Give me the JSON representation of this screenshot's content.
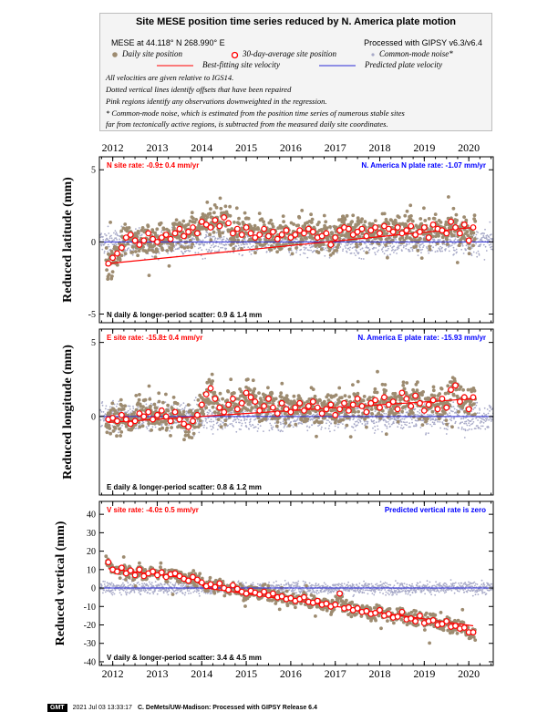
{
  "header": {
    "title": "Site MESE position time series reduced by N. America plate motion",
    "site_location": "MESE at 44.118° N 268.990° E",
    "processing": "Processed with GIPSY v6.3/v6.4",
    "legend_daily": "Daily site position",
    "legend_avg": "30-day-average site position",
    "legend_cmn": "Common-mode noise*",
    "legend_fit": "Best-fitting site velocity",
    "legend_pred": "Predicted plate velocity",
    "note1": "All velocities are given relative to IGS14.",
    "note2": "Dotted vertical lines identify offsets that have been repaired",
    "note3": "Pink regions identify any observations downweighted in the regression.",
    "note4": "* Common-mode noise, which is estimated from the position time series of numerous stable sites",
    "note5": "far from tectonically active regions, is subtracted from the measured daily site coordinates."
  },
  "footer": {
    "logo": "GMT",
    "timestamp": "2021 Jul 03 13:33:17",
    "credit": "C. DeMets/UW-Madison: Processed with GIPSY Release 6.4"
  },
  "colors": {
    "daily": "#9d8b70",
    "noise": "#a8aac8",
    "fit": "#ff0000",
    "predicted": "#2a2ad6",
    "rate_text_red": "#ff0000",
    "rate_text_blue": "#0000ff"
  },
  "chart_data": [
    {
      "type": "scatter",
      "component": "N",
      "ylabel": "Reduced latitude (mm)",
      "xlim": [
        2011.7,
        2020.55
      ],
      "ylim": [
        -5.6,
        5.9
      ],
      "yticks": [
        -5,
        0,
        5
      ],
      "xticks": [
        2012,
        2013,
        2014,
        2015,
        2016,
        2017,
        2018,
        2019,
        2020
      ],
      "site_rate": "N site rate:  -0.9± 0.4 mm/yr",
      "plate_rate": "N. America N plate rate: -1.07 mm/yr",
      "scatter_text": "N daily & longer-period scatter:   0.9 &   1.4 mm",
      "fit_line": {
        "x": [
          2011.9,
          2020.1
        ],
        "y": [
          -1.5,
          1.0
        ]
      },
      "predicted_line": {
        "x": [
          2011.7,
          2020.55
        ],
        "y": [
          0,
          0
        ]
      },
      "avg": {
        "x": [
          2011.9,
          2012.0,
          2012.1,
          2012.2,
          2012.3,
          2012.4,
          2012.5,
          2012.6,
          2012.7,
          2012.8,
          2012.9,
          2013.0,
          2013.1,
          2013.2,
          2013.3,
          2013.4,
          2013.5,
          2013.6,
          2013.7,
          2013.8,
          2013.9,
          2014.0,
          2014.1,
          2014.2,
          2014.3,
          2014.4,
          2014.5,
          2014.6,
          2014.7,
          2014.8,
          2014.9,
          2015.0,
          2015.1,
          2015.2,
          2015.3,
          2015.4,
          2015.5,
          2015.6,
          2015.7,
          2015.8,
          2015.9,
          2016.0,
          2016.1,
          2016.2,
          2016.3,
          2016.4,
          2016.5,
          2016.6,
          2016.7,
          2016.8,
          2016.9,
          2017.0,
          2017.1,
          2017.2,
          2017.3,
          2017.4,
          2017.5,
          2017.6,
          2017.7,
          2017.8,
          2017.9,
          2018.0,
          2018.1,
          2018.2,
          2018.3,
          2018.4,
          2018.5,
          2018.6,
          2018.7,
          2018.8,
          2018.9,
          2019.0,
          2019.1,
          2019.2,
          2019.3,
          2019.4,
          2019.5,
          2019.6,
          2019.7,
          2019.8,
          2019.9,
          2020.0,
          2020.1
        ],
        "y": [
          -1.5,
          -1.1,
          -0.8,
          -0.4,
          0.3,
          0.5,
          0.1,
          -0.2,
          0.1,
          0.6,
          0.2,
          0.0,
          0.3,
          0.5,
          0.2,
          0.6,
          0.9,
          0.4,
          0.7,
          1.0,
          0.6,
          1.4,
          1.2,
          1.0,
          1.5,
          1.1,
          1.7,
          1.3,
          0.6,
          0.9,
          0.5,
          1.0,
          0.6,
          0.3,
          0.5,
          0.9,
          0.4,
          0.7,
          0.2,
          0.5,
          0.8,
          0.3,
          0.5,
          0.8,
          0.6,
          0.9,
          0.7,
          0.3,
          0.4,
          0.6,
          -0.2,
          0.3,
          0.8,
          1.0,
          0.9,
          0.5,
          0.7,
          0.9,
          0.4,
          0.8,
          1.0,
          0.6,
          1.1,
          0.9,
          0.7,
          1.0,
          0.6,
          0.8,
          1.1,
          0.5,
          0.7,
          1.0,
          0.3,
          1.2,
          0.9,
          0.8,
          0.6,
          1.4,
          1.0,
          0.6,
          1.2,
          0.1,
          1.0
        ]
      }
    },
    {
      "type": "scatter",
      "component": "E",
      "ylabel": "Reduced longitude (mm)",
      "xlim": [
        2011.7,
        2020.55
      ],
      "ylim": [
        -5.3,
        5.9
      ],
      "yticks": [
        0,
        5
      ],
      "xticks": [
        2012,
        2013,
        2014,
        2015,
        2016,
        2017,
        2018,
        2019,
        2020
      ],
      "site_rate": "E site rate:  -15.8± 0.4 mm/yr",
      "plate_rate": "N. America E plate rate: -15.93 mm/yr",
      "scatter_text": "E daily & longer-period scatter:   0.8 &   1.2 mm",
      "fit_line": {
        "x": [
          2011.9,
          2020.1
        ],
        "y": [
          -0.4,
          1.2
        ]
      },
      "predicted_line": {
        "x": [
          2011.7,
          2020.55
        ],
        "y": [
          0,
          0
        ]
      },
      "avg": {
        "x": [
          2011.9,
          2012.0,
          2012.1,
          2012.2,
          2012.3,
          2012.4,
          2012.5,
          2012.6,
          2012.7,
          2012.8,
          2012.9,
          2013.0,
          2013.1,
          2013.2,
          2013.3,
          2013.4,
          2013.5,
          2013.6,
          2013.7,
          2013.8,
          2013.9,
          2014.0,
          2014.1,
          2014.2,
          2014.3,
          2014.4,
          2014.5,
          2014.6,
          2014.7,
          2014.8,
          2014.9,
          2015.0,
          2015.1,
          2015.2,
          2015.3,
          2015.4,
          2015.5,
          2015.6,
          2015.7,
          2015.8,
          2015.9,
          2016.0,
          2016.1,
          2016.2,
          2016.3,
          2016.4,
          2016.5,
          2016.6,
          2016.7,
          2016.8,
          2016.9,
          2017.0,
          2017.1,
          2017.2,
          2017.3,
          2017.4,
          2017.5,
          2017.6,
          2017.7,
          2017.8,
          2017.9,
          2018.0,
          2018.1,
          2018.2,
          2018.3,
          2018.4,
          2018.5,
          2018.6,
          2018.7,
          2018.8,
          2018.9,
          2019.0,
          2019.1,
          2019.2,
          2019.3,
          2019.4,
          2019.5,
          2019.6,
          2019.7,
          2019.8,
          2019.9,
          2020.0,
          2020.1
        ],
        "y": [
          -0.2,
          -0.1,
          -0.3,
          0.1,
          -0.2,
          -0.5,
          -0.3,
          0.2,
          0.0,
          0.3,
          -0.2,
          0.1,
          0.4,
          0.0,
          -0.3,
          0.3,
          -0.2,
          -0.5,
          -0.7,
          -0.3,
          0.1,
          0.8,
          1.5,
          1.9,
          1.2,
          0.6,
          0.3,
          0.8,
          1.2,
          0.5,
          0.9,
          1.6,
          1.3,
          1.0,
          0.4,
          0.7,
          1.2,
          0.6,
          0.2,
          0.9,
          0.5,
          0.3,
          0.6,
          0.9,
          0.4,
          0.7,
          1.0,
          0.6,
          0.2,
          0.5,
          0.8,
          0.1,
          0.5,
          0.9,
          0.4,
          0.8,
          1.2,
          0.7,
          0.3,
          0.9,
          1.1,
          0.6,
          1.3,
          0.8,
          1.0,
          0.5,
          1.6,
          1.2,
          0.7,
          1.4,
          0.9,
          0.4,
          0.8,
          1.1,
          0.5,
          1.2,
          0.6,
          1.8,
          2.1,
          1.0,
          1.3,
          0.5,
          1.3
        ]
      }
    },
    {
      "type": "scatter",
      "component": "V",
      "ylabel": "Reduced vertical (mm)",
      "xlim": [
        2011.7,
        2020.55
      ],
      "ylim": [
        -42,
        47
      ],
      "yticks": [
        -40,
        -30,
        -20,
        -10,
        0,
        10,
        20,
        30,
        40
      ],
      "xticks": [
        2012,
        2013,
        2014,
        2015,
        2016,
        2017,
        2018,
        2019,
        2020
      ],
      "site_rate": "V site rate:  -4.0± 0.5 mm/yr",
      "plate_rate": "Predicted vertical rate is zero",
      "scatter_text": "V daily & longer-period scatter:   3.4 &   4.5 mm",
      "fit_line": {
        "x": [
          2011.9,
          2013.8,
          2014.1,
          2020.1
        ],
        "y": [
          10.5,
          5.0,
          0.0,
          -20.5
        ]
      },
      "predicted_line": {
        "x": [
          2011.7,
          2020.55
        ],
        "y": [
          0,
          0
        ]
      },
      "avg": {
        "x": [
          2011.9,
          2012.0,
          2012.1,
          2012.2,
          2012.3,
          2012.4,
          2012.5,
          2012.6,
          2012.7,
          2012.8,
          2012.9,
          2013.0,
          2013.1,
          2013.2,
          2013.3,
          2013.4,
          2013.5,
          2013.6,
          2013.7,
          2013.8,
          2013.9,
          2014.0,
          2014.1,
          2014.2,
          2014.3,
          2014.4,
          2014.5,
          2014.6,
          2014.7,
          2014.8,
          2014.9,
          2015.0,
          2015.1,
          2015.2,
          2015.3,
          2015.4,
          2015.5,
          2015.6,
          2015.7,
          2015.8,
          2015.9,
          2016.0,
          2016.1,
          2016.2,
          2016.3,
          2016.4,
          2016.5,
          2016.6,
          2016.7,
          2016.8,
          2016.9,
          2017.0,
          2017.1,
          2017.2,
          2017.3,
          2017.4,
          2017.5,
          2017.6,
          2017.7,
          2017.8,
          2017.9,
          2018.0,
          2018.1,
          2018.2,
          2018.3,
          2018.4,
          2018.5,
          2018.6,
          2018.7,
          2018.8,
          2018.9,
          2019.0,
          2019.1,
          2019.2,
          2019.3,
          2019.4,
          2019.5,
          2019.6,
          2019.7,
          2019.8,
          2019.9,
          2020.0,
          2020.1
        ],
        "y": [
          14.0,
          10.0,
          9.0,
          11.0,
          8.0,
          9.5,
          7.0,
          10.0,
          6.5,
          8.0,
          9.0,
          7.0,
          8.5,
          6.0,
          7.5,
          8.0,
          6.5,
          5.0,
          4.0,
          6.0,
          4.5,
          3.0,
          1.0,
          2.0,
          0.5,
          2.5,
          0.0,
          -1.0,
          1.5,
          -0.5,
          -2.0,
          -3.0,
          -1.5,
          -2.5,
          -3.5,
          -2.0,
          -4.0,
          -3.0,
          -5.0,
          -4.5,
          -6.0,
          -5.5,
          -7.0,
          -6.0,
          -5.0,
          -7.5,
          -8.0,
          -7.0,
          -9.0,
          -8.5,
          -10.0,
          -9.0,
          -3.0,
          -11.0,
          -10.5,
          -12.0,
          -11.0,
          -13.0,
          -12.5,
          -14.0,
          -13.5,
          -12.0,
          -15.0,
          -14.0,
          -16.0,
          -15.5,
          -13.0,
          -17.0,
          -16.5,
          -18.0,
          -15.0,
          -19.0,
          -18.0,
          -17.5,
          -20.0,
          -19.5,
          -18.0,
          -21.0,
          -20.5,
          -22.0,
          -21.5,
          -24.0,
          -24.0
        ]
      }
    }
  ]
}
